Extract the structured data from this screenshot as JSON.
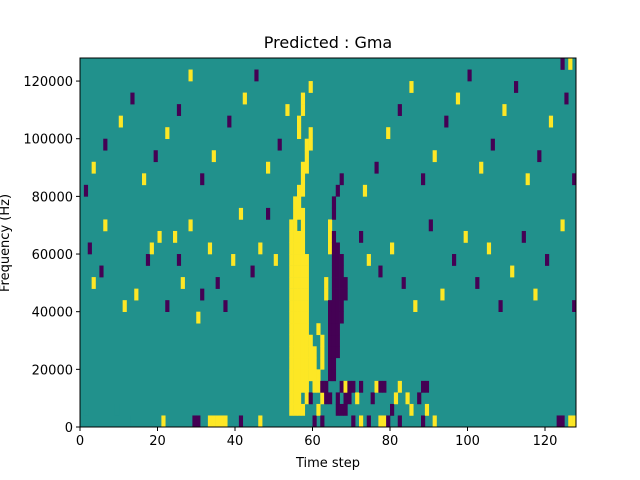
{
  "chart_data": {
    "type": "heatmap",
    "title": "Predicted : Gma",
    "xlabel": "Time step",
    "ylabel": "Frequency (Hz)",
    "xlim": [
      0,
      128
    ],
    "ylim": [
      0,
      128000
    ],
    "x_ticks": [
      0,
      20,
      40,
      60,
      80,
      100,
      120
    ],
    "y_ticks": [
      0,
      20000,
      40000,
      60000,
      80000,
      100000,
      120000
    ],
    "x_tick_labels": [
      "0",
      "20",
      "40",
      "60",
      "80",
      "100",
      "120"
    ],
    "y_tick_labels": [
      "0",
      "20000",
      "40000",
      "60000",
      "80000",
      "100000",
      "120000"
    ],
    "n_time_steps": 128,
    "n_freq_bins": 32,
    "colormap": "viridis",
    "colors": {
      "background": "#21918c",
      "high": "#fde725",
      "low": "#440154"
    },
    "cell_legend": {
      "0": "background",
      "1": "high",
      "-1": "low"
    },
    "cells": [
      [
        1,
        1,
        1,
        9
      ],
      [
        9,
        1,
        1,
        11
      ],
      [
        12,
        0,
        1,
        7
      ],
      [
        21,
        0,
        1,
        1
      ],
      [
        29,
        0,
        1,
        -1
      ],
      [
        30,
        0,
        1,
        -1
      ],
      [
        33,
        0,
        1,
        1
      ],
      [
        34,
        0,
        1,
        1
      ],
      [
        35,
        0,
        1,
        1
      ],
      [
        36,
        0,
        1,
        1
      ],
      [
        37,
        0,
        1,
        1
      ],
      [
        41,
        0,
        1,
        -1
      ],
      [
        46,
        0,
        1,
        1
      ],
      [
        54,
        1,
        1,
        1
      ],
      [
        55,
        1,
        1,
        1
      ],
      [
        56,
        1,
        1,
        1
      ],
      [
        57,
        1,
        1,
        1
      ],
      [
        58,
        2,
        1,
        1
      ],
      [
        59,
        2,
        1,
        -1
      ],
      [
        60,
        0,
        1,
        -1
      ],
      [
        61,
        1,
        1,
        1
      ],
      [
        62,
        0,
        1,
        -1
      ],
      [
        63,
        2,
        1,
        1
      ],
      [
        64,
        2,
        1,
        -1
      ],
      [
        66,
        1,
        1,
        -1
      ],
      [
        67,
        1,
        1,
        -1
      ],
      [
        68,
        1,
        1,
        -1
      ],
      [
        70,
        0,
        1,
        -1
      ],
      [
        72,
        0,
        1,
        1
      ],
      [
        74,
        0,
        1,
        -1
      ],
      [
        77,
        0,
        1,
        1
      ],
      [
        78,
        0,
        1,
        1
      ],
      [
        79,
        0,
        1,
        -1
      ],
      [
        80,
        1,
        1,
        -1
      ],
      [
        82,
        0,
        1,
        -1
      ],
      [
        84,
        2,
        1,
        1
      ],
      [
        85,
        1,
        1,
        1
      ],
      [
        88,
        0,
        1,
        -1
      ],
      [
        89,
        1,
        1,
        1
      ],
      [
        91,
        0,
        1,
        1
      ],
      [
        123,
        0,
        1,
        -1
      ],
      [
        124,
        0,
        1,
        -1
      ],
      [
        126,
        0,
        1,
        1
      ],
      [
        127,
        0,
        1,
        1
      ]
    ],
    "bands": [
      [
        54,
        2,
        16,
        1
      ],
      [
        55,
        2,
        17,
        1
      ],
      [
        56,
        2,
        15,
        1
      ],
      [
        57,
        3,
        16,
        1
      ],
      [
        58,
        3,
        12,
        1
      ],
      [
        59,
        4,
        4,
        1
      ],
      [
        60,
        3,
        4,
        1
      ],
      [
        55,
        18,
        2,
        1
      ],
      [
        56,
        18,
        3,
        1
      ],
      [
        57,
        20,
        3,
        1
      ],
      [
        58,
        22,
        2,
        1
      ],
      [
        59,
        24,
        2,
        1
      ],
      [
        56,
        25,
        2,
        1
      ],
      [
        57,
        27,
        2,
        1
      ],
      [
        58,
        23,
        2,
        1
      ],
      [
        59,
        29,
        1,
        1
      ],
      [
        63,
        3,
        1,
        -1
      ],
      [
        64,
        4,
        7,
        -1
      ],
      [
        65,
        4,
        13,
        -1
      ],
      [
        66,
        6,
        10,
        -1
      ],
      [
        67,
        9,
        6,
        -1
      ],
      [
        68,
        11,
        2,
        -1
      ],
      [
        65,
        18,
        2,
        -1
      ],
      [
        66,
        20,
        1,
        -1
      ],
      [
        67,
        21,
        1,
        -1
      ],
      [
        61,
        3,
        2,
        1
      ],
      [
        62,
        5,
        3,
        1
      ],
      [
        61,
        8,
        1,
        1
      ],
      [
        63,
        11,
        2,
        1
      ],
      [
        64,
        15,
        3,
        1
      ],
      [
        68,
        3,
        1,
        1
      ],
      [
        69,
        2,
        1,
        -1
      ],
      [
        70,
        3,
        1,
        -1
      ],
      [
        62,
        2,
        1,
        1
      ],
      [
        62,
        3,
        1,
        -1
      ],
      [
        63,
        2,
        1,
        -1
      ],
      [
        66,
        2,
        1,
        -1
      ],
      [
        67,
        3,
        1,
        -1
      ],
      [
        68,
        2,
        1,
        -1
      ],
      [
        69,
        3,
        1,
        -1
      ],
      [
        71,
        2,
        1,
        1
      ],
      [
        72,
        3,
        1,
        -1
      ],
      [
        75,
        2,
        1,
        -1
      ],
      [
        76,
        3,
        1,
        1
      ],
      [
        77,
        3,
        1,
        -1
      ],
      [
        78,
        3,
        1,
        -1
      ],
      [
        81,
        2,
        1,
        1
      ],
      [
        82,
        3,
        1,
        1
      ],
      [
        87,
        2,
        1,
        -1
      ],
      [
        88,
        3,
        1,
        -1
      ],
      [
        89,
        3,
        1,
        -1
      ],
      [
        2,
        15,
        1,
        -1
      ],
      [
        3,
        12,
        1,
        1
      ],
      [
        5,
        13,
        1,
        -1
      ],
      [
        6,
        17,
        1,
        1
      ],
      [
        11,
        10,
        1,
        1
      ],
      [
        14,
        11,
        1,
        1
      ],
      [
        17,
        14,
        1,
        -1
      ],
      [
        18,
        15,
        1,
        1
      ],
      [
        20,
        16,
        1,
        1
      ],
      [
        22,
        10,
        1,
        -1
      ],
      [
        24,
        16,
        1,
        1
      ],
      [
        25,
        14,
        1,
        -1
      ],
      [
        26,
        12,
        1,
        1
      ],
      [
        28,
        17,
        1,
        1
      ],
      [
        30,
        9,
        1,
        1
      ],
      [
        31,
        11,
        1,
        -1
      ],
      [
        33,
        15,
        1,
        1
      ],
      [
        35,
        12,
        1,
        -1
      ],
      [
        37,
        10,
        1,
        -1
      ],
      [
        39,
        14,
        1,
        1
      ],
      [
        41,
        18,
        1,
        1
      ],
      [
        44,
        13,
        1,
        -1
      ],
      [
        46,
        15,
        1,
        1
      ],
      [
        48,
        18,
        1,
        -1
      ],
      [
        50,
        14,
        1,
        1
      ],
      [
        72,
        16,
        1,
        -1
      ],
      [
        74,
        14,
        1,
        1
      ],
      [
        77,
        13,
        1,
        -1
      ],
      [
        80,
        15,
        1,
        1
      ],
      [
        83,
        12,
        1,
        -1
      ],
      [
        86,
        10,
        1,
        1
      ],
      [
        90,
        17,
        1,
        -1
      ],
      [
        93,
        11,
        1,
        1
      ],
      [
        96,
        14,
        1,
        -1
      ],
      [
        99,
        16,
        1,
        1
      ],
      [
        102,
        12,
        1,
        -1
      ],
      [
        105,
        15,
        1,
        1
      ],
      [
        108,
        10,
        1,
        -1
      ],
      [
        111,
        13,
        1,
        1
      ],
      [
        114,
        16,
        1,
        -1
      ],
      [
        117,
        11,
        1,
        1
      ],
      [
        120,
        14,
        1,
        -1
      ],
      [
        124,
        17,
        1,
        1
      ],
      [
        1,
        20,
        1,
        -1
      ],
      [
        3,
        22,
        1,
        1
      ],
      [
        6,
        24,
        1,
        -1
      ],
      [
        10,
        26,
        1,
        1
      ],
      [
        13,
        28,
        1,
        -1
      ],
      [
        16,
        21,
        1,
        1
      ],
      [
        19,
        23,
        1,
        -1
      ],
      [
        22,
        25,
        1,
        1
      ],
      [
        25,
        27,
        1,
        -1
      ],
      [
        28,
        30,
        1,
        1
      ],
      [
        31,
        21,
        1,
        -1
      ],
      [
        34,
        23,
        1,
        1
      ],
      [
        38,
        26,
        1,
        -1
      ],
      [
        42,
        28,
        1,
        1
      ],
      [
        45,
        30,
        1,
        -1
      ],
      [
        48,
        22,
        1,
        1
      ],
      [
        51,
        24,
        1,
        -1
      ],
      [
        53,
        27,
        1,
        1
      ],
      [
        73,
        20,
        1,
        1
      ],
      [
        76,
        22,
        1,
        -1
      ],
      [
        79,
        25,
        1,
        1
      ],
      [
        82,
        27,
        1,
        -1
      ],
      [
        85,
        29,
        1,
        1
      ],
      [
        88,
        21,
        1,
        -1
      ],
      [
        91,
        23,
        1,
        1
      ],
      [
        94,
        26,
        1,
        -1
      ],
      [
        97,
        28,
        1,
        1
      ],
      [
        100,
        30,
        1,
        -1
      ],
      [
        103,
        22,
        1,
        1
      ],
      [
        106,
        24,
        1,
        -1
      ],
      [
        109,
        27,
        1,
        1
      ],
      [
        112,
        29,
        1,
        -1
      ],
      [
        115,
        21,
        1,
        1
      ],
      [
        118,
        23,
        1,
        -1
      ],
      [
        121,
        26,
        1,
        1
      ],
      [
        125,
        28,
        1,
        -1
      ],
      [
        126,
        31,
        1,
        1
      ],
      [
        124,
        31,
        1,
        -1
      ],
      [
        127,
        10,
        1,
        -1
      ],
      [
        127,
        21,
        1,
        -1
      ]
    ]
  }
}
